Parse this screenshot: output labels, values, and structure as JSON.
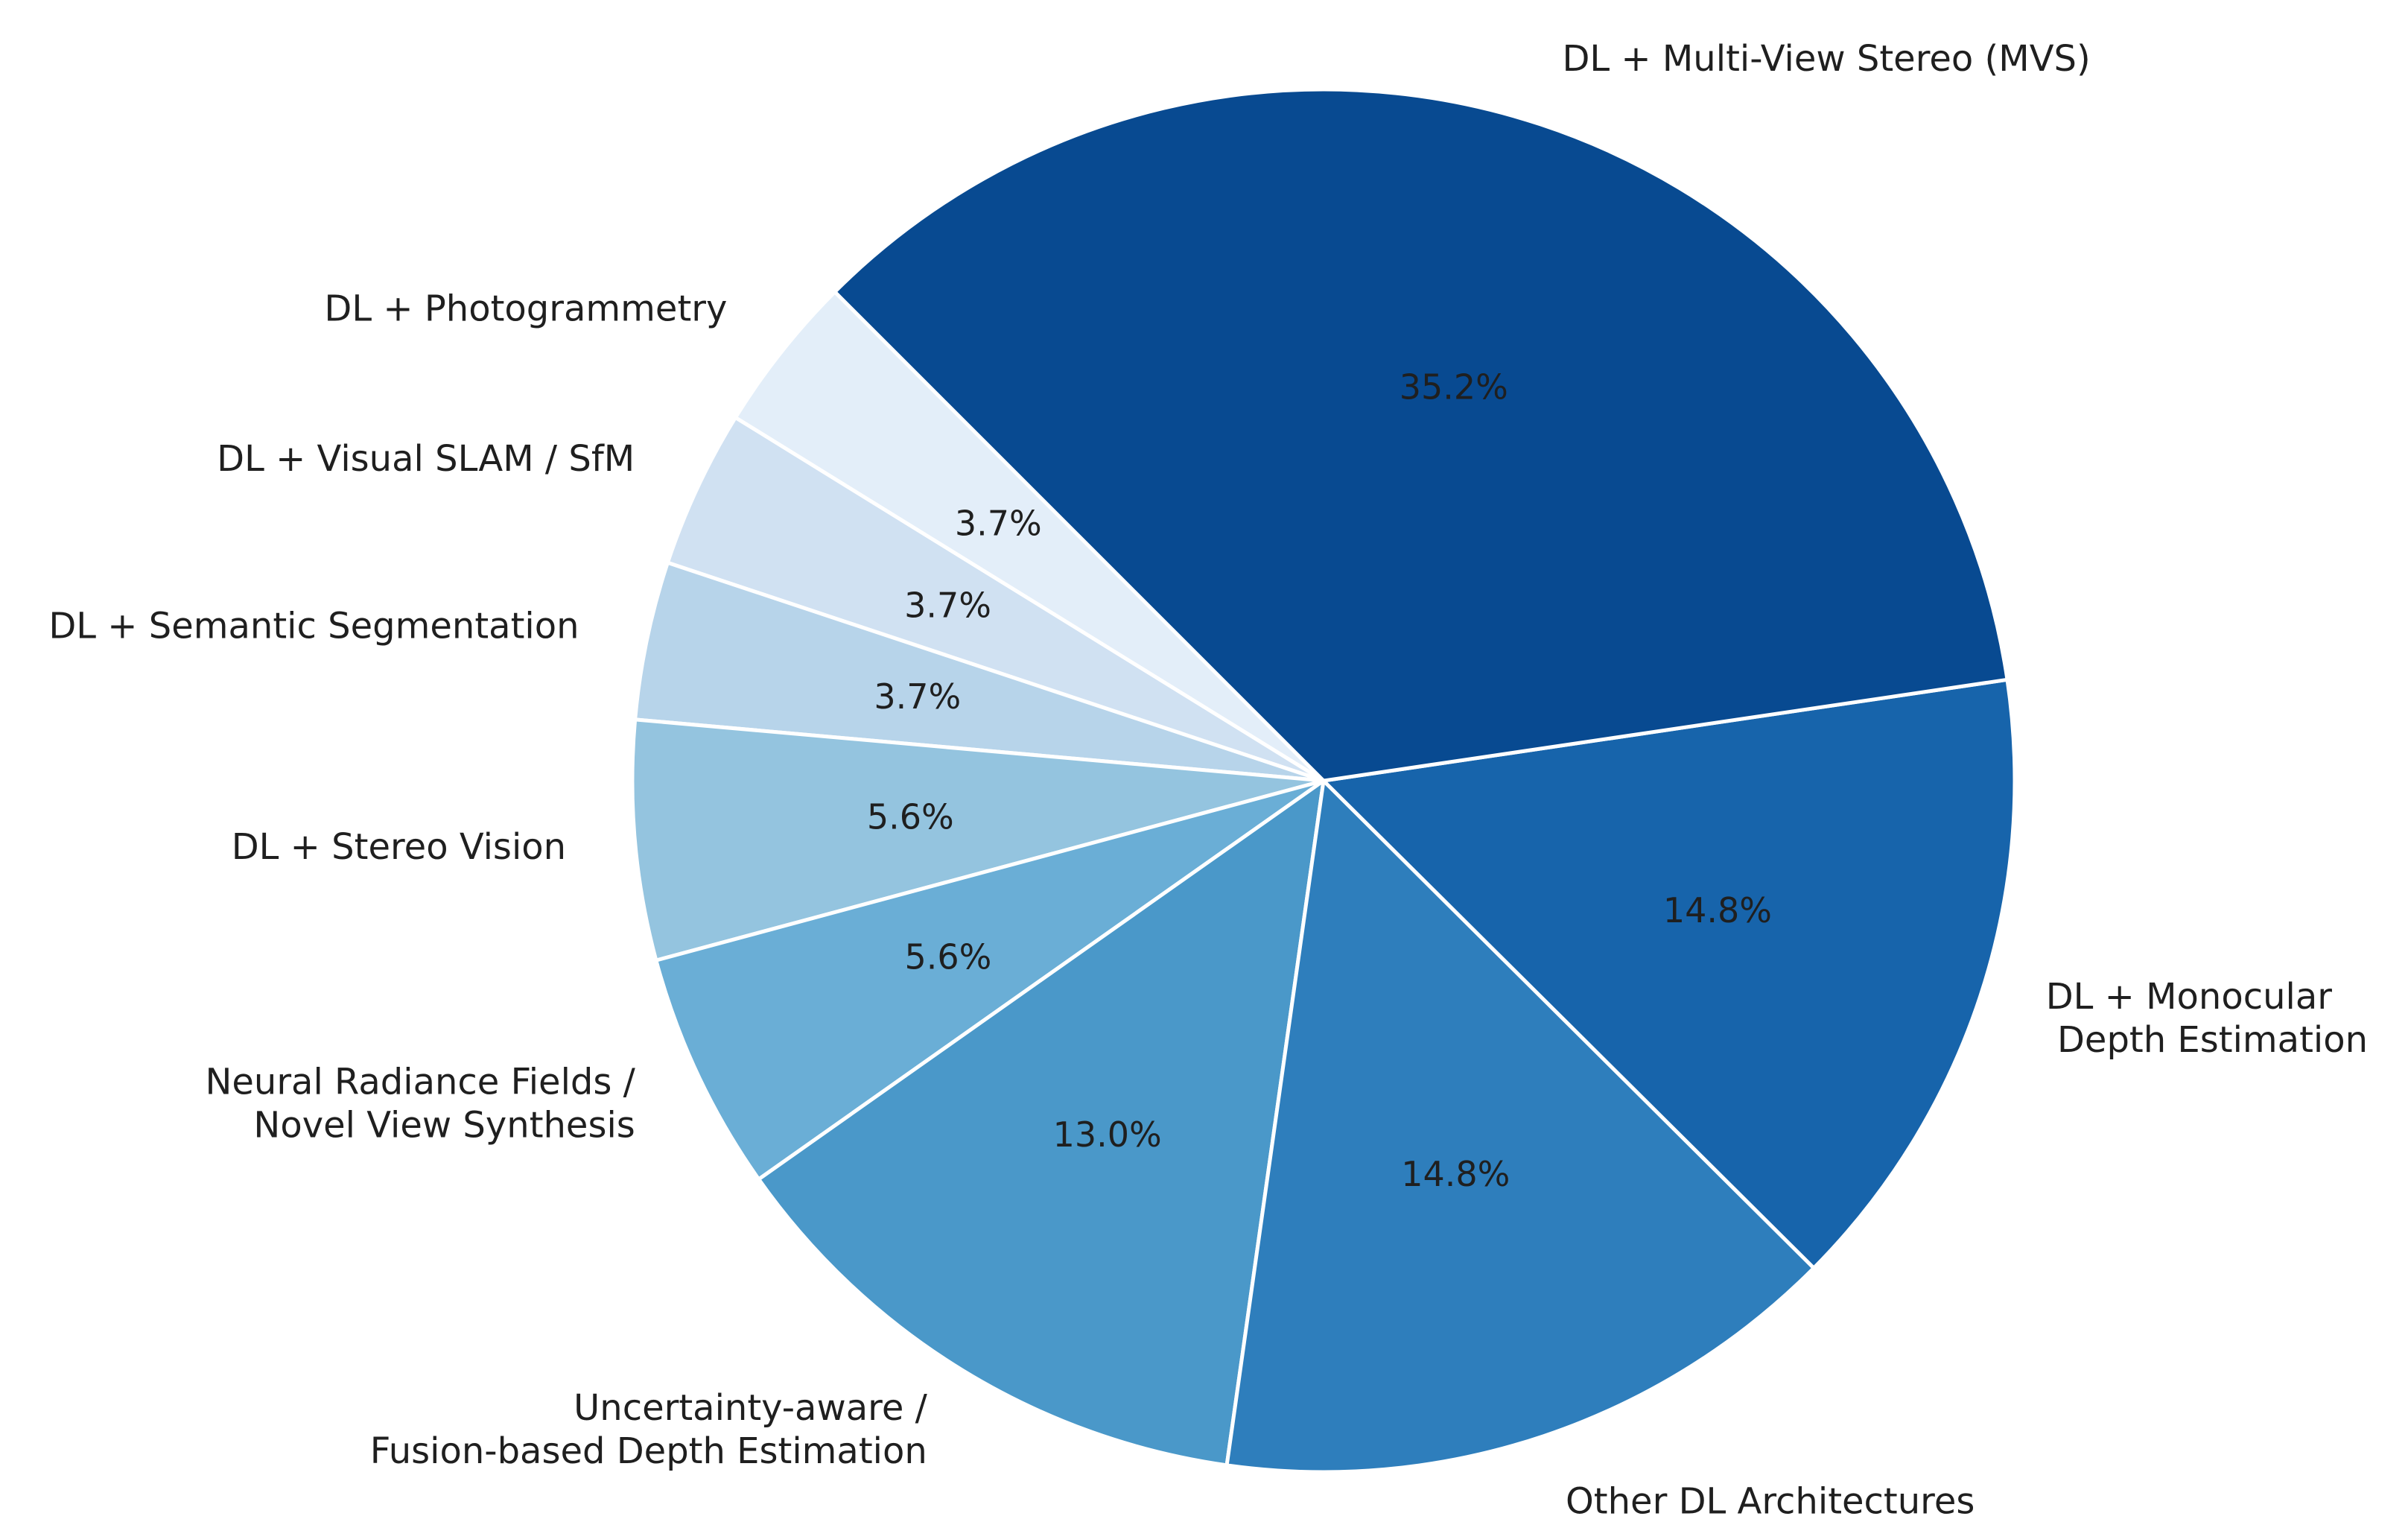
{
  "chart_data": {
    "type": "pie",
    "title": "",
    "start_angle_deg": 135,
    "direction": "counterclockwise",
    "slices": [
      {
        "label": "DL + Photogrammetry",
        "value": 3.7,
        "pct_label": "3.7%",
        "color": "#e3eef9"
      },
      {
        "label": "DL + Visual SLAM / SfM",
        "value": 3.7,
        "pct_label": "3.7%",
        "color": "#d0e1f2"
      },
      {
        "label": "DL + Semantic Segmentation",
        "value": 3.7,
        "pct_label": "3.7%",
        "color": "#b7d4ea"
      },
      {
        "label": "DL + Stereo Vision",
        "value": 5.6,
        "pct_label": "5.6%",
        "color": "#94c4df"
      },
      {
        "label": "Neural Radiance Fields /\nNovel View Synthesis",
        "value": 5.6,
        "pct_label": "5.6%",
        "color": "#6aaed6"
      },
      {
        "label": "Uncertainty-aware /\nFusion-based Depth Estimation",
        "value": 13.0,
        "pct_label": "13.0%",
        "color": "#4a98c9"
      },
      {
        "label": "Other DL Architectures",
        "value": 14.8,
        "pct_label": "14.8%",
        "color": "#2e7ebc"
      },
      {
        "label": "DL + Monocular\n Depth Estimation",
        "value": 14.8,
        "pct_label": "14.8%",
        "color": "#1764ab"
      },
      {
        "label": "DL + Multi-View Stereo (MVS)",
        "value": 35.2,
        "pct_label": "35.2%",
        "color": "#084a91"
      }
    ]
  }
}
